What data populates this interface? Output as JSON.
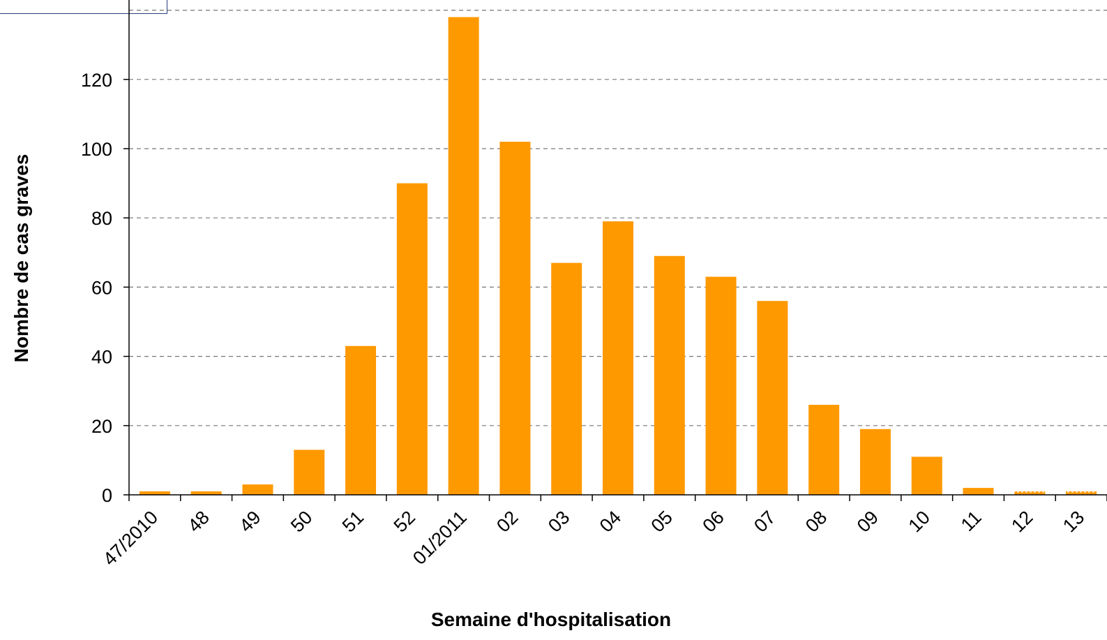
{
  "chart_data": {
    "type": "bar",
    "title": "",
    "xlabel": "Semaine d'hospitalisation",
    "ylabel": "Nombre de cas graves",
    "categories": [
      "47/2010",
      "48",
      "49",
      "50",
      "51",
      "52",
      "01/2011",
      "02",
      "03",
      "04",
      "05",
      "06",
      "07",
      "08",
      "09",
      "10",
      "11",
      "12",
      "13"
    ],
    "values": [
      1,
      1,
      3,
      13,
      43,
      90,
      138,
      102,
      67,
      79,
      69,
      63,
      56,
      26,
      19,
      11,
      2,
      1,
      1
    ],
    "provisional": [
      false,
      false,
      false,
      false,
      false,
      false,
      false,
      false,
      false,
      false,
      false,
      false,
      false,
      false,
      false,
      false,
      false,
      true,
      true
    ],
    "ylim": [
      0,
      140
    ],
    "yticks": [
      0,
      20,
      40,
      60,
      80,
      100,
      120
    ],
    "grid": true,
    "colors": {
      "bar": "#ff9900",
      "provisional": "#ffb84d",
      "grid": "#777777",
      "axis": "#000000"
    }
  }
}
